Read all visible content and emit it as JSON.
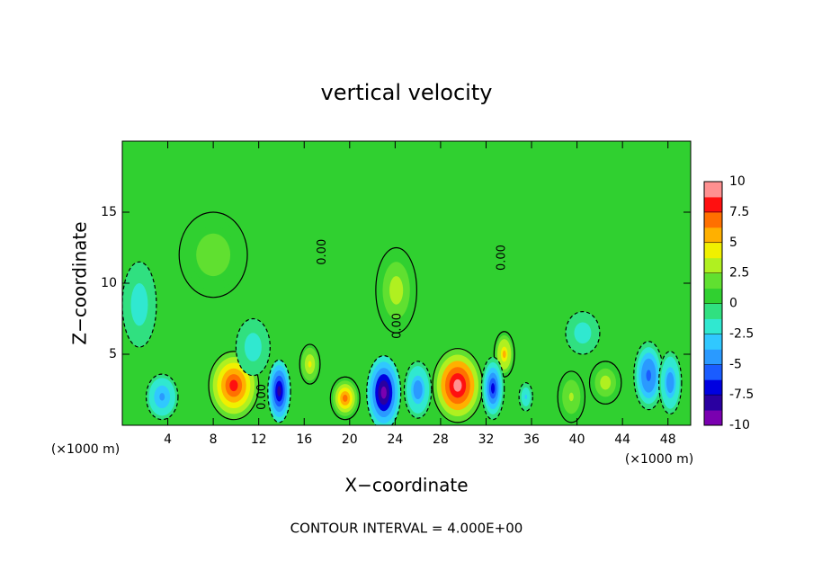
{
  "chart_data": {
    "type": "contour",
    "title": "vertical velocity",
    "x_label": "X−coordinate",
    "y_label": "Z−coordinate",
    "x_unit": "(×1000 m)",
    "footer": "CONTOUR INTERVAL = 4.000E+00",
    "xlim": [
      0,
      50
    ],
    "ylim": [
      0,
      20
    ],
    "xticks": [
      4,
      8,
      12,
      16,
      20,
      24,
      28,
      32,
      36,
      40,
      44,
      48
    ],
    "yticks": [
      5,
      10,
      15
    ],
    "x": [
      9.8,
      19.6,
      29.5,
      33.6,
      16.5,
      24.1,
      39.5,
      42.5,
      23,
      13.8,
      26,
      32.6,
      46.3,
      48.2,
      3.5,
      35.5,
      1.5,
      11.5,
      8,
      40.5
    ],
    "y": [
      2.8,
      1.9,
      2.8,
      5,
      4.3,
      9.5,
      2,
      3,
      2.3,
      2.4,
      2.5,
      2.6,
      3.5,
      3,
      2,
      2,
      8.5,
      5.5,
      12,
      6.5
    ],
    "values": [
      8,
      7,
      10,
      5,
      4,
      3,
      2.5,
      3,
      -10,
      -8,
      -5,
      -7,
      -6,
      -5,
      -4,
      -3,
      -2,
      -2,
      2,
      -2
    ],
    "widths": [
      2.2,
      1.3,
      2.2,
      0.9,
      0.9,
      1.8,
      1.2,
      1.4,
      1.5,
      1,
      1.2,
      1,
      1.3,
      1,
      1.4,
      0.6,
      1.5,
      1.5,
      3,
      1.5
    ],
    "heights": [
      2.4,
      1.5,
      2.6,
      1.6,
      1.4,
      3,
      1.8,
      1.5,
      2.6,
      2.2,
      2,
      2.2,
      2.4,
      2.2,
      1.6,
      1,
      3,
      2,
      3,
      1.5
    ],
    "contour_labels": [
      {
        "text": "0.00",
        "x": 12.3,
        "y": 2
      },
      {
        "text": "0.00",
        "x": 17.6,
        "y": 12.2
      },
      {
        "text": "0.00",
        "x": 24.2,
        "y": 7
      },
      {
        "text": "0.00",
        "x": 33.4,
        "y": 11.8
      }
    ],
    "colorbar": {
      "lim": [
        -10,
        10
      ],
      "ticks": [
        10,
        7.5,
        5,
        2.5,
        0,
        -2.5,
        -5,
        -7.5,
        -10
      ],
      "colors": [
        "#7a00b0",
        "#2a00a0",
        "#0000e0",
        "#1a5cff",
        "#2a9aff",
        "#30c8ff",
        "#30e8d0",
        "#30e080",
        "#30d030",
        "#60e030",
        "#b0f020",
        "#f0f000",
        "#ffb000",
        "#ff7000",
        "#ff1010",
        "#ff9090"
      ]
    }
  }
}
